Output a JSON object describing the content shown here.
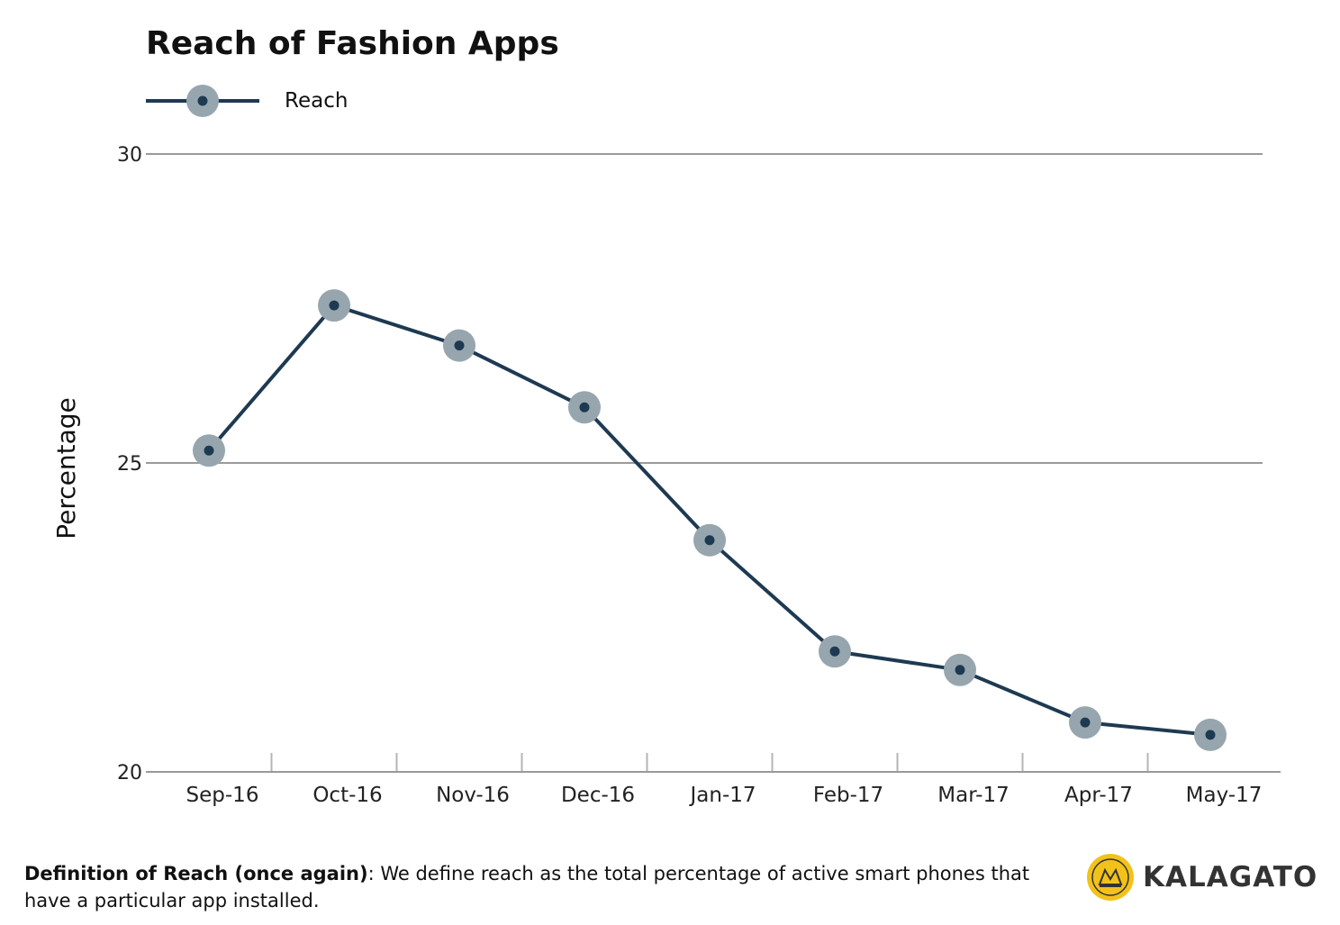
{
  "chart_data": {
    "type": "line",
    "title": "Reach of Fashion Apps",
    "ylabel": "Percentage",
    "xlabel": "",
    "categories": [
      "Sep-16",
      "Oct-16",
      "Nov-16",
      "Dec-16",
      "Jan-17",
      "Feb-17",
      "Mar-17",
      "Apr-17",
      "May-17"
    ],
    "series": [
      {
        "name": "Reach",
        "values": [
          25.2,
          27.55,
          26.9,
          25.9,
          23.75,
          21.95,
          21.65,
          20.8,
          20.6
        ]
      }
    ],
    "ylim": [
      20,
      30
    ],
    "yticks": [
      20,
      25,
      30
    ],
    "grid": true,
    "legend": "top-left",
    "colors": {
      "line": "#1e3a52",
      "marker_outer": "#97a6ae",
      "marker_inner": "#1e3a52",
      "grid": "#9a9a9a"
    }
  },
  "footnote": {
    "bold": "Definition of Reach (once again)",
    "text": ": We define reach as the total percentage of active smart phones that have a particular app installed."
  },
  "brand": {
    "name": "KALAGATO",
    "logo_text": "KALAGATO",
    "logo_color": "#f2c21b",
    "icon": "kalagato-logo-icon"
  }
}
